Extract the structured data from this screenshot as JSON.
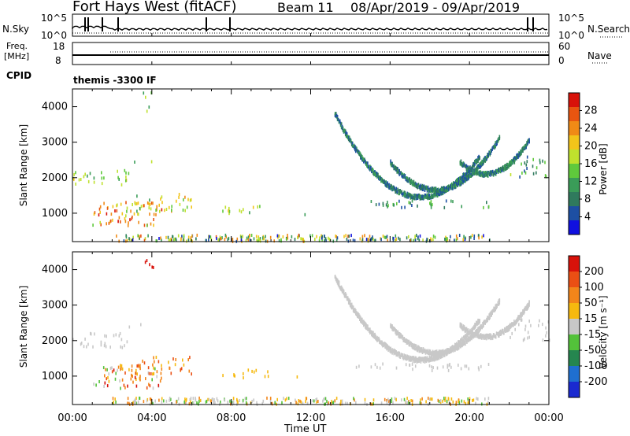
{
  "header": {
    "station": "Fort Hays West (fitACF)",
    "beam": "Beam 11",
    "dates": "08/Apr/2019 - 09/Apr/2019"
  },
  "strips": {
    "nsky_label": "N.Sky",
    "nsky_ticks": [
      "10^5",
      "10^0"
    ],
    "nsearch_label": "N.Search",
    "nsearch_ticks": [
      "10^5",
      "10^0"
    ],
    "freq_label_1": "Freq.",
    "freq_label_2": "[MHz]",
    "freq_ticks": [
      "18",
      "8"
    ],
    "nave_label": "Nave",
    "nave_ticks": [
      "60",
      "0"
    ],
    "cpid_label": "CPID",
    "cpid_value": "themis -3300 IF"
  },
  "chart_data": [
    {
      "type": "heatmap",
      "name": "power",
      "ylabel": "Slant Range [km]",
      "ylim": [
        200,
        4500
      ],
      "yticks": [
        "4000",
        "3000",
        "2000",
        "1000"
      ],
      "xlabel": "Time UT",
      "xticks": [
        "00:00",
        "04:00",
        "08:00",
        "12:00",
        "16:00",
        "20:00",
        "00:00"
      ],
      "colorbar_label": "Power [dB]",
      "colorbar_ticks": [
        "28",
        "24",
        "20",
        "16",
        "12",
        "8",
        "4"
      ],
      "colors": [
        "#1010e0",
        "#1d4fa3",
        "#2f7a5d",
        "#3a9c58",
        "#5fc93c",
        "#bfe12d",
        "#f2c41a",
        "#f08a16",
        "#e85510",
        "#d8120a"
      ]
    },
    {
      "type": "heatmap",
      "name": "velocity",
      "ylabel": "Slant Range [km]",
      "ylim": [
        200,
        4500
      ],
      "yticks": [
        "4000",
        "3000",
        "2000",
        "1000"
      ],
      "colorbar_label": "Velocity [m s⁻¹]",
      "colorbar_ticks": [
        "200",
        "100",
        "50",
        "15",
        "-15",
        "-50",
        "-100",
        "-200"
      ],
      "colors": [
        "#1a2ad0",
        "#1f6fd0",
        "#25864f",
        "#53c23a",
        "#c8c8c8",
        "#f6b90f",
        "#f2851a",
        "#ea4f14",
        "#d8120a"
      ]
    }
  ],
  "xaxis": {
    "label": "Time UT",
    "ticks": [
      "00:00",
      "04:00",
      "08:00",
      "12:00",
      "16:00",
      "20:00",
      "00:00"
    ]
  }
}
